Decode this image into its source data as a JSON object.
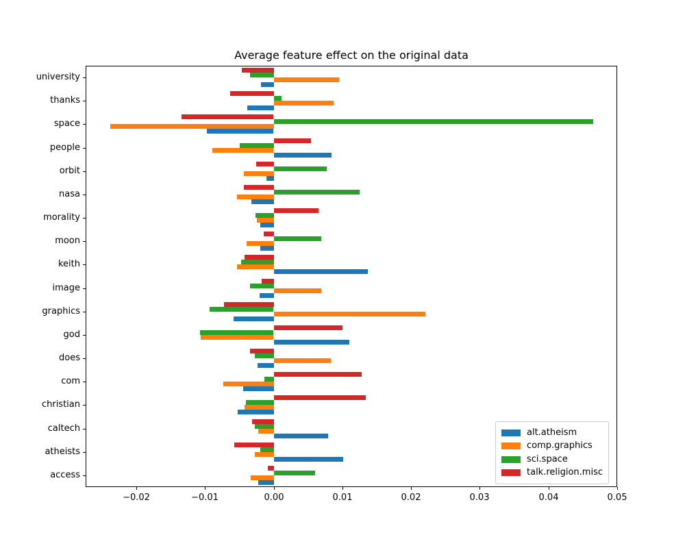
{
  "chart_data": {
    "type": "bar",
    "orientation": "horizontal",
    "title": "Average feature effect on the original data",
    "categories": [
      "university",
      "thanks",
      "space",
      "people",
      "orbit",
      "nasa",
      "morality",
      "moon",
      "keith",
      "image",
      "graphics",
      "god",
      "does",
      "com",
      "christian",
      "caltech",
      "atheists",
      "access"
    ],
    "series": [
      {
        "name": "alt.atheism",
        "color": "#1f77b4",
        "values": [
          -0.0019,
          -0.0039,
          -0.0097,
          0.0084,
          -0.0011,
          -0.0033,
          -0.002,
          -0.002,
          0.0137,
          -0.0021,
          -0.0059,
          0.011,
          -0.0024,
          -0.0045,
          -0.0053,
          0.0079,
          0.0101,
          -0.0023
        ]
      },
      {
        "name": "comp.graphics",
        "color": "#ff7f0e",
        "values": [
          0.0095,
          0.0087,
          -0.0238,
          -0.0089,
          -0.0044,
          -0.0054,
          -0.0025,
          -0.004,
          -0.0054,
          0.0069,
          0.022,
          -0.0106,
          0.0083,
          -0.0074,
          -0.0043,
          -0.0023,
          -0.0028,
          -0.0034
        ]
      },
      {
        "name": "sci.space",
        "color": "#2ca02c",
        "values": [
          -0.0035,
          0.0011,
          0.0465,
          -0.005,
          0.0077,
          0.0125,
          -0.0027,
          0.0069,
          -0.0048,
          -0.0035,
          -0.0093,
          -0.0107,
          -0.0028,
          -0.0014,
          -0.0041,
          -0.0028,
          -0.002,
          0.006
        ]
      },
      {
        "name": "talk.religion.misc",
        "color": "#d62728",
        "values": [
          -0.0047,
          -0.0064,
          -0.0134,
          0.0054,
          -0.0026,
          -0.0044,
          0.0065,
          -0.0015,
          -0.0043,
          -0.0018,
          -0.0073,
          0.01,
          -0.0035,
          0.0128,
          0.0134,
          -0.0032,
          -0.0058,
          -0.0009
        ]
      }
    ],
    "bar_order_top_to_bottom": [
      "talk.religion.misc",
      "sci.space",
      "comp.graphics",
      "alt.atheism"
    ],
    "xlim": [
      -0.0274,
      0.05
    ],
    "x_ticks": [
      -0.02,
      -0.01,
      0,
      0.01,
      0.02,
      0.03,
      0.04,
      0.05
    ],
    "x_tick_labels": [
      "−0.02",
      "−0.01",
      "0.00",
      "0.01",
      "0.02",
      "0.03",
      "0.04",
      "0.05"
    ],
    "grid": false,
    "legend_position": "lower right"
  }
}
